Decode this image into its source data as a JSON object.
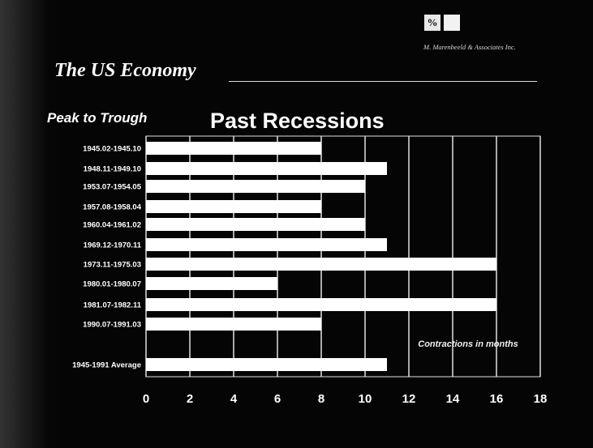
{
  "header": {
    "title": "The US Economy",
    "firm": "M. Marenbeeld & Associates Inc.",
    "logo_text": "%"
  },
  "chart_data": {
    "type": "bar",
    "title": "Past Recessions",
    "subtitle": "Peak to Trough",
    "annotation": "Contractions in months",
    "categories": [
      "1945.02-1945.10",
      "1948.11-1949.10",
      "1953.07-1954.05",
      "1957.08-1958.04",
      "1960.04-1961.02",
      "1969.12-1970.11",
      "1973.11-1975.03",
      "1980.01-1980.07",
      "1981.07-1982.11",
      "1990.07-1991.03",
      "1945-1991 Average"
    ],
    "values": [
      8,
      11,
      10,
      8,
      10,
      11,
      16,
      6,
      16,
      8,
      11
    ],
    "xlim": [
      0,
      18
    ],
    "xticks": [
      "0",
      "2",
      "4",
      "6",
      "8",
      "10",
      "12",
      "14",
      "16",
      "18"
    ],
    "xlabel": "",
    "ylabel": "",
    "grid": true,
    "orientation": "horizontal"
  },
  "colors": {
    "background": "#050505",
    "bar": "#ffffff",
    "grid": "#e0e0e0",
    "text": "#ffffff"
  }
}
